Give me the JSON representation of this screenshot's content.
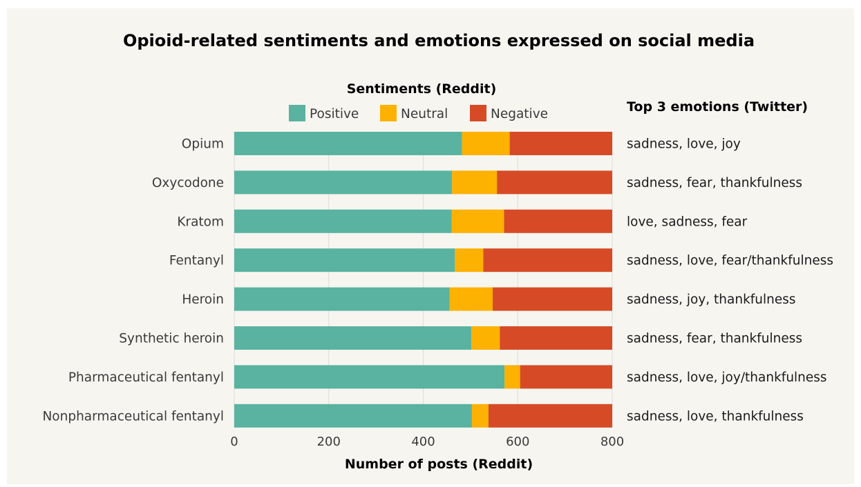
{
  "chart_data": {
    "type": "bar",
    "orientation": "horizontal",
    "stacked": true,
    "title": "Opioid-related sentiments and emotions expressed on social media",
    "legend_title": "Sentiments (Reddit)",
    "right_header": "Top 3 emotions (Twitter)",
    "xlabel": "Number of posts (Reddit)",
    "xlim": [
      0,
      800
    ],
    "xticks": [
      0,
      200,
      400,
      600,
      800
    ],
    "grid": true,
    "legend_position": "top",
    "categories": [
      "Opium",
      "Oxycodone",
      "Kratom",
      "Fentanyl",
      "Heroin",
      "Synthetic heroin",
      "Pharmaceutical fentanyl",
      "Nonpharmaceutical fentanyl"
    ],
    "series": [
      {
        "name": "Positive",
        "color": "#59b3a0",
        "values": [
          482,
          461,
          460,
          467,
          456,
          502,
          572,
          503
        ]
      },
      {
        "name": "Neutral",
        "color": "#fdb100",
        "values": [
          101,
          95,
          111,
          60,
          91,
          60,
          33,
          35
        ]
      },
      {
        "name": "Negative",
        "color": "#d64b26",
        "values": [
          217,
          244,
          229,
          273,
          253,
          238,
          195,
          262
        ]
      }
    ],
    "emotions": [
      "sadness, love, joy",
      "sadness, fear, thankfulness",
      "love, sadness, fear",
      "sadness, love, fear/thankfulness",
      "sadness, joy, thankfulness",
      "sadness, fear, thankfulness",
      "sadness, love, joy/thankfulness",
      "sadness, love, thankfulness"
    ]
  }
}
